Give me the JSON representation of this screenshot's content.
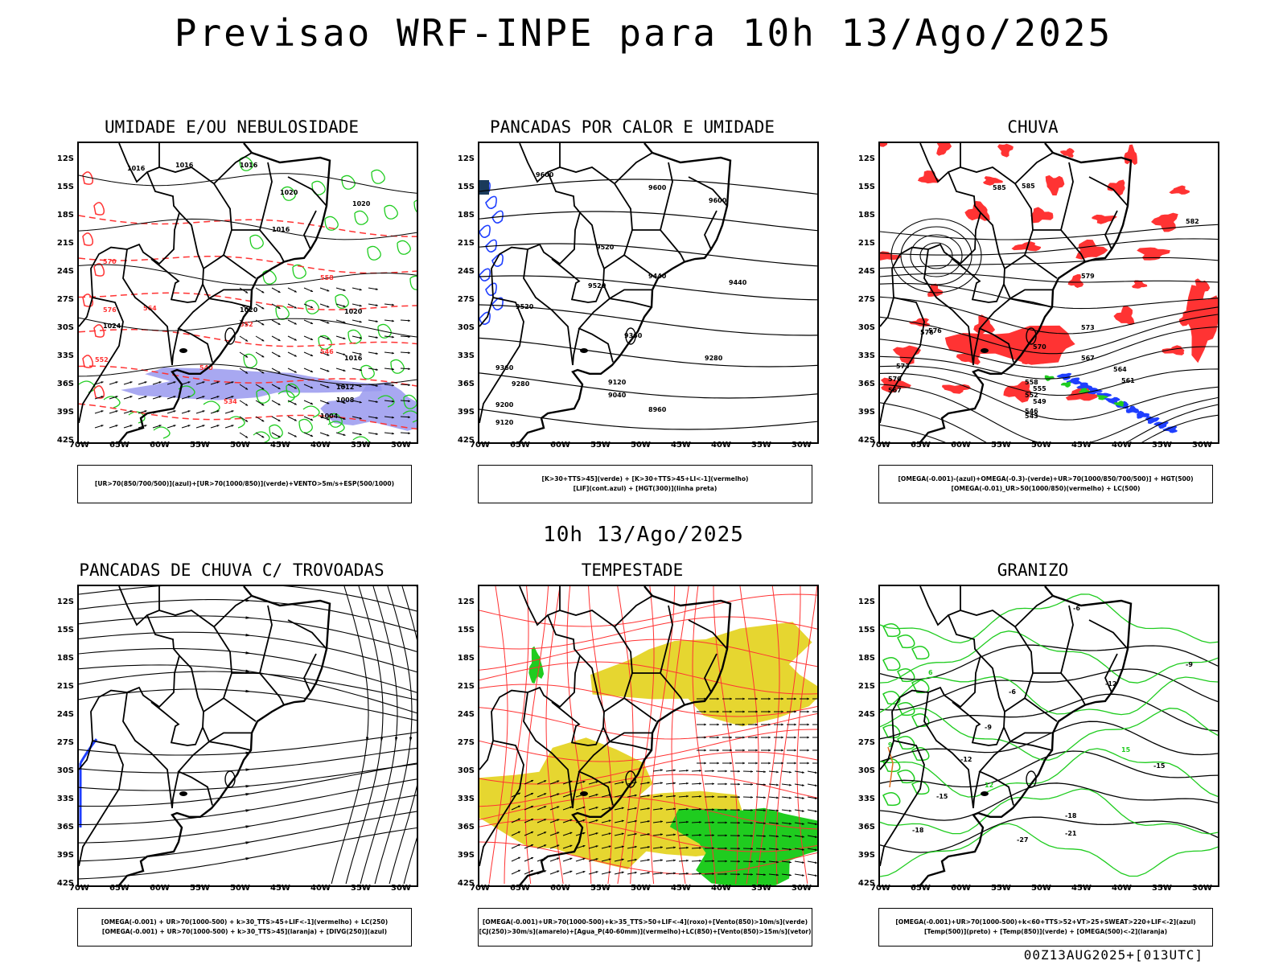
{
  "main_title": "Previsao WRF-INPE  para 10h 13/Ago/2025",
  "sub_title": "10h 13/Ago/2025",
  "footer": "00Z13AUG2025+[013UTC]",
  "lat_labels": [
    "12S",
    "15S",
    "18S",
    "21S",
    "24S",
    "27S",
    "30S",
    "33S",
    "36S",
    "39S",
    "42S"
  ],
  "lon_labels": [
    "70W",
    "65W",
    "60W",
    "55W",
    "50W",
    "45W",
    "40W",
    "35W",
    "30W"
  ],
  "colors": {
    "blue": "#1f3fff",
    "green": "#1fcc1f",
    "red": "#ff3333",
    "yellow": "#e6d630",
    "lavender": "#9999ee",
    "black": "#000000"
  },
  "panels": [
    {
      "title": "UMIDADE E/OU NEBULOSIDADE",
      "legend_lines": [
        "[UR>70(850/700/500)](azul)+[UR>70(1000/850)](verde)+VENTO>5m/s+ESP(500/1000)"
      ]
    },
    {
      "title": "PANCADAS POR CALOR E UMIDADE",
      "legend_lines": [
        "[K>30+TTS>45](verde) + [K>30+TTS>45+LI<-1](vermelho)",
        "[LIF](cont.azul) + [HGT(300)](linha preta)"
      ]
    },
    {
      "title": "CHUVA",
      "legend_lines": [
        "[OMEGA(-0.001)-(azul)+OMEGA(-0.3)-(verde)+UR>70(1000/850/700/500)] + HGT(500)",
        "[OMEGA(-0.01)_UR>50(1000/850)(vermelho) + LC(500)"
      ]
    },
    {
      "title": "PANCADAS DE CHUVA C/ TROVOADAS",
      "legend_lines": [
        "[OMEGA(-0.001) + UR>70(1000-500) + k>30_TTS>45+LIF<-1](vermelho) + LC(250)",
        "[OMEGA(-0.001) + UR>70(1000-500) + k>30_TTS>45](laranja) + [DIVG(250)](azul)"
      ]
    },
    {
      "title": "TEMPESTADE",
      "legend_lines": [
        "[OMEGA(-0.001)+UR>70(1000-500)+k>35_TTS>50+LIF<-4](roxo)+[Vento(850)>10m/s](verde)",
        "[CJ(250)>30m/s](amarelo)+[Agua_P(40-60mm)](vermelho)+LC(850)+[Vento(850)>15m/s](vetor)"
      ]
    },
    {
      "title": "GRANIZO",
      "legend_lines": [
        "[OMEGA(-0.001)+UR>70(1000-500)+k<60+TTS>52+VT>25+SWEAT>220+LIF<-2](azul)",
        "[Temp(500)](preto) + [Temp(850)](verde) + [OMEGA(500)<-2](laranja)"
      ]
    }
  ],
  "contour_labels": {
    "p1": [
      "1016",
      "1016",
      "1016",
      "1020",
      "1020",
      "1016",
      "1020",
      "1020",
      "1024",
      "1016",
      "1012",
      "1008",
      "1004",
      "558",
      "564",
      "552",
      "546",
      "540",
      "534",
      "570",
      "576",
      "552"
    ],
    "p2": [
      "9600",
      "9600",
      "9600",
      "9520",
      "9520",
      "9520",
      "9440",
      "9440",
      "9360",
      "9360",
      "9280",
      "9280",
      "9200",
      "9120",
      "9040",
      "8960",
      "9120"
    ],
    "p3": [
      "585",
      "585",
      "582",
      "579",
      "576",
      "573",
      "570",
      "567",
      "564",
      "561",
      "558",
      "555",
      "552",
      "549",
      "546",
      "543",
      "576",
      "573",
      "570",
      "567"
    ],
    "p6": [
      "-6",
      "-9",
      "-12",
      "-15",
      "-18",
      "-21",
      "-27",
      "-18",
      "-15",
      "-12",
      "-9",
      "-6",
      "6",
      "9",
      "12",
      "15"
    ]
  }
}
